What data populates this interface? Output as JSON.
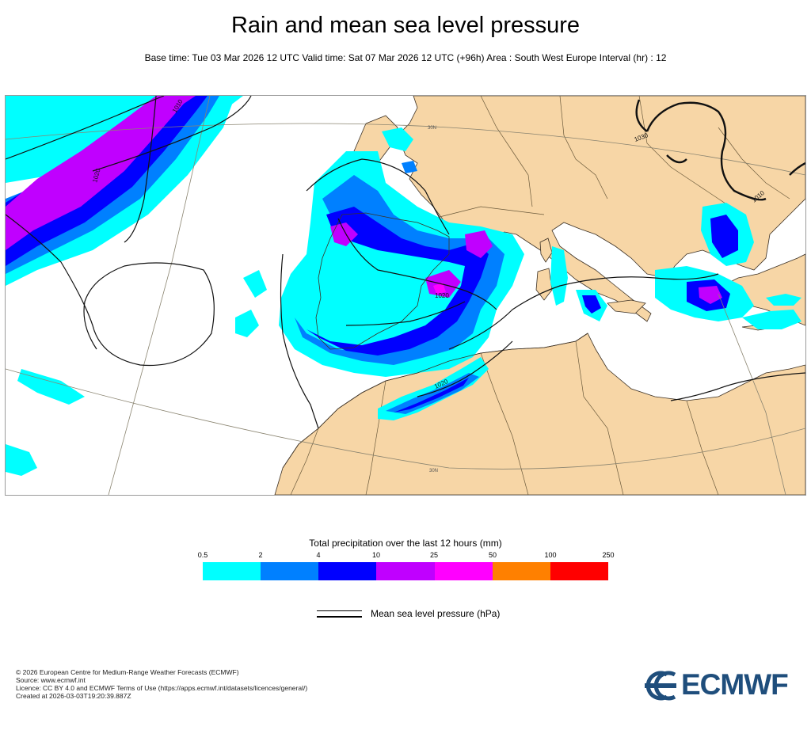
{
  "title": "Rain and mean sea level pressure",
  "subtitle": "Base time: Tue 03 Mar 2026 12 UTC Valid time: Sat 07 Mar 2026 12 UTC (+96h) Area : South West Europe Interval (hr) : 12",
  "map": {
    "isobar_labels": [
      "1010",
      "1020",
      "1030",
      "1020",
      "1020",
      "1010"
    ],
    "graticule_labels": [
      "30N",
      "30N"
    ],
    "colors": {
      "land": "#f7d6a6",
      "sea": "#ffffff",
      "border": "#6b5a3b",
      "coast": "#3b3024",
      "isobar": "#111111",
      "graticule": "#8a8470"
    }
  },
  "legend": {
    "title": "Total precipitation over the last 12 hours (mm)",
    "ticks": [
      "0.5",
      "2",
      "4",
      "10",
      "25",
      "50",
      "100",
      "250"
    ],
    "colors": [
      "#00ffff",
      "#0080ff",
      "#0000ff",
      "#c000ff",
      "#ff00ff",
      "#ff8000",
      "#ff0000"
    ],
    "mslp_label": "Mean sea level pressure (hPa)"
  },
  "credits": [
    "© 2026 European Centre for Medium-Range Weather Forecasts (ECMWF)",
    "Source: www.ecmwf.int",
    "Licence: CC BY 4.0 and ECMWF Terms of Use (https://apps.ecmwf.int/datasets/licences/general/)",
    "Created at 2026-03-03T19:20:39.887Z"
  ],
  "logo_text": "ECMWF"
}
